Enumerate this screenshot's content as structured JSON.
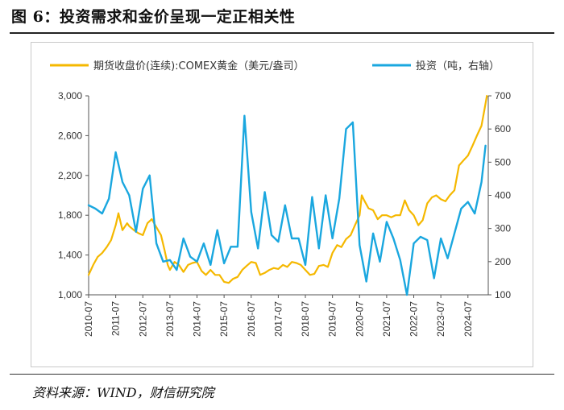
{
  "figure": {
    "title": "图 6：投资需求和金价呈现一定正相关性",
    "source": "资料来源：WIND，财信研究院"
  },
  "colors": {
    "gold": "#F5B800",
    "investment": "#1AA7DF"
  },
  "chart_data": {
    "type": "line",
    "title": "",
    "x_labels": [
      "2010-07",
      "2011-07",
      "2012-07",
      "2013-07",
      "2014-07",
      "2015-07",
      "2016-07",
      "2017-07",
      "2018-07",
      "2019-07",
      "2020-07",
      "2021-07",
      "2022-07",
      "2023-07",
      "2024-07"
    ],
    "y_left": {
      "min": 1000,
      "max": 3000,
      "ticks": [
        "1,000",
        "1,400",
        "1,800",
        "2,200",
        "2,600",
        "3,000"
      ],
      "tick_values": [
        1000,
        1400,
        1800,
        2200,
        2600,
        3000
      ]
    },
    "y_right": {
      "min": 100,
      "max": 700,
      "ticks": [
        "100",
        "200",
        "300",
        "400",
        "500",
        "600",
        "700"
      ],
      "tick_values": [
        100,
        200,
        300,
        400,
        500,
        600,
        700
      ]
    },
    "x_range": [
      2010.5,
      2025.25
    ],
    "series": [
      {
        "name": "期货收盘价(连续):COMEX黄金（美元/盎司）",
        "axis": "left",
        "color": "#F5B800",
        "x": [
          2010.5,
          2010.67,
          2010.83,
          2011.0,
          2011.17,
          2011.33,
          2011.5,
          2011.6,
          2011.75,
          2011.92,
          2012.0,
          2012.17,
          2012.33,
          2012.5,
          2012.67,
          2012.83,
          2013.0,
          2013.17,
          2013.3,
          2013.42,
          2013.5,
          2013.67,
          2013.83,
          2014.0,
          2014.17,
          2014.33,
          2014.5,
          2014.67,
          2014.83,
          2015.0,
          2015.17,
          2015.33,
          2015.5,
          2015.67,
          2015.83,
          2016.0,
          2016.17,
          2016.33,
          2016.5,
          2016.67,
          2016.83,
          2017.0,
          2017.17,
          2017.33,
          2017.5,
          2017.67,
          2017.83,
          2018.0,
          2018.17,
          2018.33,
          2018.5,
          2018.67,
          2018.83,
          2019.0,
          2019.17,
          2019.33,
          2019.5,
          2019.67,
          2019.83,
          2020.0,
          2020.17,
          2020.33,
          2020.5,
          2020.58,
          2020.67,
          2020.83,
          2021.0,
          2021.17,
          2021.33,
          2021.5,
          2021.67,
          2021.83,
          2022.0,
          2022.17,
          2022.33,
          2022.5,
          2022.67,
          2022.83,
          2023.0,
          2023.17,
          2023.33,
          2023.5,
          2023.67,
          2023.83,
          2024.0,
          2024.17,
          2024.33,
          2024.5,
          2024.67,
          2024.83,
          2025.0,
          2025.1,
          2025.2
        ],
        "values": [
          1200,
          1300,
          1380,
          1420,
          1480,
          1550,
          1700,
          1820,
          1650,
          1720,
          1690,
          1650,
          1620,
          1600,
          1720,
          1760,
          1680,
          1600,
          1450,
          1300,
          1250,
          1330,
          1300,
          1230,
          1300,
          1320,
          1330,
          1240,
          1200,
          1250,
          1200,
          1200,
          1130,
          1120,
          1160,
          1180,
          1250,
          1290,
          1330,
          1320,
          1200,
          1220,
          1250,
          1270,
          1260,
          1300,
          1280,
          1330,
          1320,
          1300,
          1250,
          1200,
          1210,
          1290,
          1300,
          1280,
          1420,
          1500,
          1480,
          1560,
          1600,
          1700,
          1800,
          2000,
          1950,
          1870,
          1850,
          1760,
          1800,
          1800,
          1780,
          1800,
          1800,
          1950,
          1850,
          1800,
          1700,
          1750,
          1920,
          1980,
          2000,
          1960,
          1940,
          2000,
          2050,
          2300,
          2350,
          2400,
          2500,
          2600,
          2700,
          2850,
          3000
        ]
      },
      {
        "name": "投资（吨，右轴）",
        "axis": "right",
        "color": "#1AA7DF",
        "x": [
          2010.5,
          2010.75,
          2011.0,
          2011.25,
          2011.5,
          2011.75,
          2012.0,
          2012.25,
          2012.5,
          2012.75,
          2013.0,
          2013.25,
          2013.5,
          2013.75,
          2014.0,
          2014.25,
          2014.5,
          2014.75,
          2015.0,
          2015.25,
          2015.5,
          2015.75,
          2016.0,
          2016.25,
          2016.5,
          2016.75,
          2017.0,
          2017.25,
          2017.5,
          2017.75,
          2018.0,
          2018.25,
          2018.5,
          2018.75,
          2019.0,
          2019.25,
          2019.5,
          2019.75,
          2020.0,
          2020.25,
          2020.5,
          2020.75,
          2021.0,
          2021.25,
          2021.5,
          2021.75,
          2022.0,
          2022.25,
          2022.5,
          2022.75,
          2023.0,
          2023.25,
          2023.5,
          2023.75,
          2024.0,
          2024.25,
          2024.5,
          2024.75,
          2025.0,
          2025.15
        ],
        "values": [
          370,
          360,
          345,
          390,
          530,
          440,
          400,
          290,
          420,
          460,
          255,
          200,
          205,
          175,
          270,
          215,
          200,
          255,
          190,
          295,
          195,
          245,
          245,
          640,
          350,
          240,
          410,
          280,
          260,
          370,
          270,
          270,
          190,
          395,
          240,
          400,
          270,
          390,
          600,
          620,
          250,
          140,
          285,
          200,
          320,
          270,
          205,
          100,
          255,
          275,
          265,
          150,
          270,
          210,
          285,
          360,
          380,
          345,
          440,
          550
        ]
      }
    ],
    "legend_position": "top"
  }
}
